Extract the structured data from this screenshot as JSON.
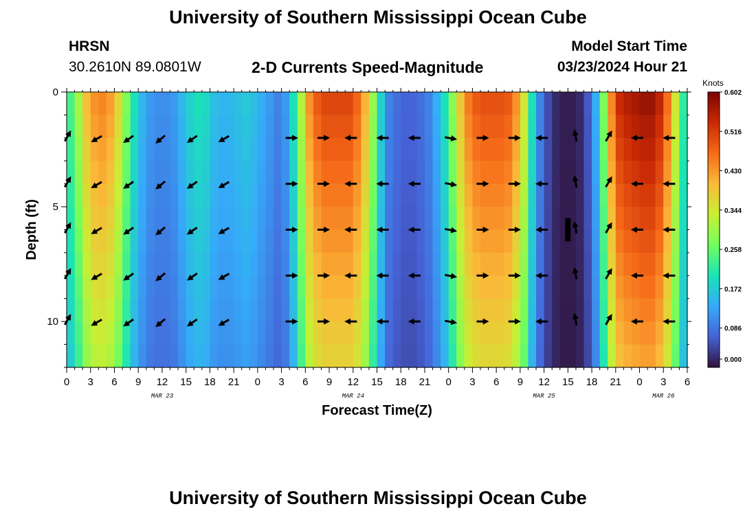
{
  "page": {
    "title_top": "University of Southern Mississippi Ocean Cube",
    "title_bottom": "University of Southern Mississippi Ocean Cube",
    "station": "HRSN",
    "coords": "30.2610N  89.0801W",
    "subtitle": "2-D Currents Speed-Magnitude",
    "model_start_label": "Model Start Time",
    "model_start_value": "03/23/2024 Hour 21"
  },
  "colors": {
    "arrow": "#000000",
    "marker": "#000000",
    "colormap": [
      "#30123b",
      "#4662d7",
      "#36aaf9",
      "#1ae4b6",
      "#72fe5e",
      "#c8ef34",
      "#faba39",
      "#f66b19",
      "#ca2a04",
      "#7a0403"
    ]
  },
  "chart_data": {
    "type": "heatmap",
    "title": "2-D Currents Speed-Magnitude",
    "xlabel": "Forecast Time(Z)",
    "ylabel": "Depth (ft)",
    "colorbar_label": "Knots",
    "colorbar_ticks": [
      "0.602",
      "0.516",
      "0.430",
      "0.344",
      "0.258",
      "0.172",
      "0.086",
      "0.000"
    ],
    "value_range": [
      0.0,
      0.602
    ],
    "xlim": [
      0,
      78
    ],
    "ylim": [
      0,
      12
    ],
    "x_tick_labels": [
      "0",
      "3",
      "6",
      "9",
      "12",
      "15",
      "18",
      "21",
      "0",
      "3",
      "6",
      "9",
      "12",
      "15",
      "18",
      "21",
      "0",
      "3",
      "6",
      "9",
      "12",
      "15",
      "18",
      "21",
      "0",
      "3",
      "6"
    ],
    "date_labels": [
      {
        "label": "MAR 23",
        "hour": 12
      },
      {
        "label": "MAR 24",
        "hour": 36
      },
      {
        "label": "MAR 25",
        "hour": 60
      },
      {
        "label": "MAR 26",
        "hour": 75
      }
    ],
    "y_major_ticks": [
      0,
      5,
      10
    ],
    "y_tick_labels": [
      "0",
      "5",
      "10"
    ],
    "time_hours": [
      0,
      1,
      2,
      3,
      4,
      5,
      6,
      7,
      8,
      9,
      10,
      11,
      12,
      13,
      14,
      15,
      16,
      17,
      18,
      19,
      20,
      21,
      22,
      23,
      24,
      25,
      26,
      27,
      28,
      29,
      30,
      31,
      32,
      33,
      34,
      35,
      36,
      37,
      38,
      39,
      40,
      41,
      42,
      43,
      44,
      45,
      46,
      47,
      48,
      49,
      50,
      51,
      52,
      53,
      54,
      55,
      56,
      57,
      58,
      59,
      60,
      61,
      62,
      63,
      64,
      65,
      66,
      67,
      68,
      69,
      70,
      71,
      72,
      73,
      74,
      75,
      76,
      77
    ],
    "surface_speed_knots": [
      0.24,
      0.31,
      0.4,
      0.44,
      0.45,
      0.43,
      0.37,
      0.28,
      0.2,
      0.15,
      0.12,
      0.11,
      0.11,
      0.12,
      0.15,
      0.18,
      0.2,
      0.19,
      0.16,
      0.15,
      0.15,
      0.16,
      0.17,
      0.16,
      0.14,
      0.12,
      0.1,
      0.12,
      0.2,
      0.32,
      0.44,
      0.49,
      0.51,
      0.51,
      0.51,
      0.51,
      0.48,
      0.41,
      0.3,
      0.18,
      0.1,
      0.08,
      0.07,
      0.07,
      0.08,
      0.1,
      0.14,
      0.2,
      0.29,
      0.39,
      0.46,
      0.49,
      0.5,
      0.5,
      0.5,
      0.49,
      0.44,
      0.35,
      0.2,
      0.1,
      0.05,
      0.02,
      0.01,
      0.01,
      0.02,
      0.06,
      0.14,
      0.28,
      0.45,
      0.54,
      0.56,
      0.57,
      0.58,
      0.58,
      0.55,
      0.47,
      0.35,
      0.22
    ],
    "depth_attenuation": [
      {
        "depth_ft": 0,
        "factor": 1.0
      },
      {
        "depth_ft": 12,
        "factor": 0.72
      }
    ],
    "arrow_times": [
      0,
      4,
      8,
      12,
      16,
      20,
      28,
      32,
      36,
      40,
      44,
      48,
      52,
      56,
      60,
      64,
      68,
      72,
      76
    ],
    "arrow_depths": [
      2,
      4,
      6,
      8,
      10
    ],
    "arrow_directions_deg": [
      60,
      210,
      215,
      220,
      215,
      210,
      0,
      0,
      180,
      180,
      180,
      -10,
      0,
      0,
      180,
      100,
      60,
      180,
      180
    ],
    "min_speed_marker": {
      "hour": 63,
      "depth_ft": 6
    }
  }
}
